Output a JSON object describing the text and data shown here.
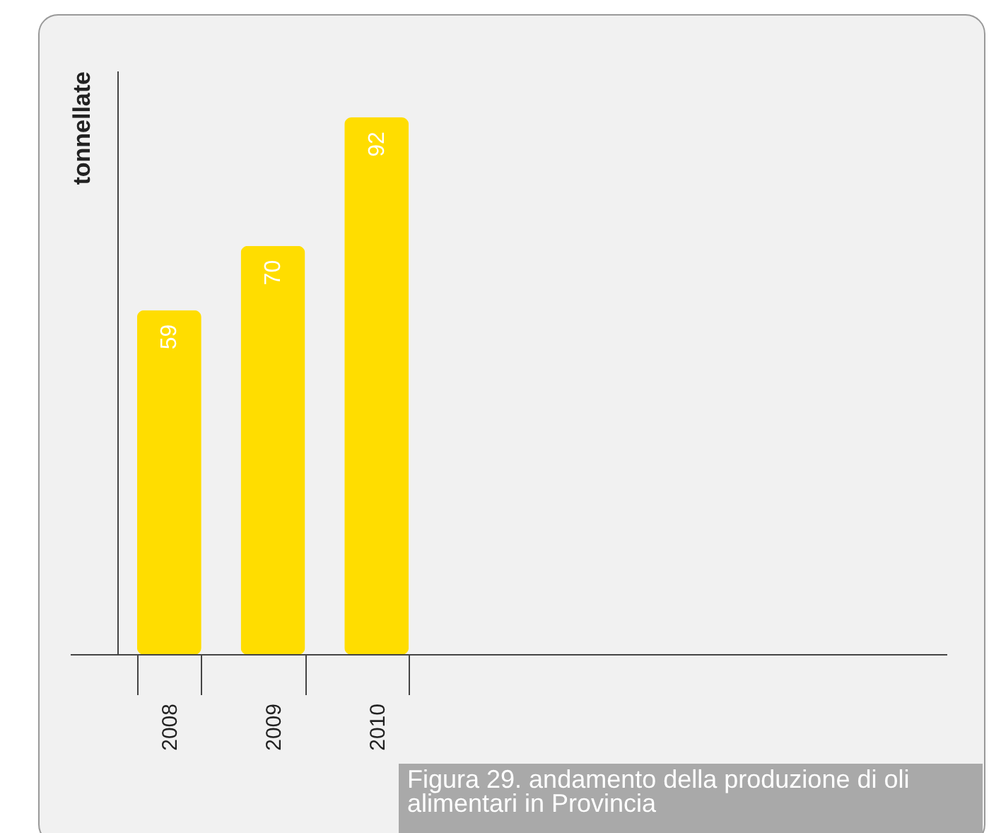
{
  "chart_data": {
    "type": "bar",
    "ylabel": "tonnellate",
    "categories": [
      "2008",
      "2009",
      "2010"
    ],
    "series": [
      {
        "color": "#ffdd00",
        "values": [
          59,
          70,
          92
        ]
      }
    ],
    "data_labels": true,
    "annotations": [
      "Figura 29. andamento della produzione di oli alimentari in Provincia"
    ]
  }
}
